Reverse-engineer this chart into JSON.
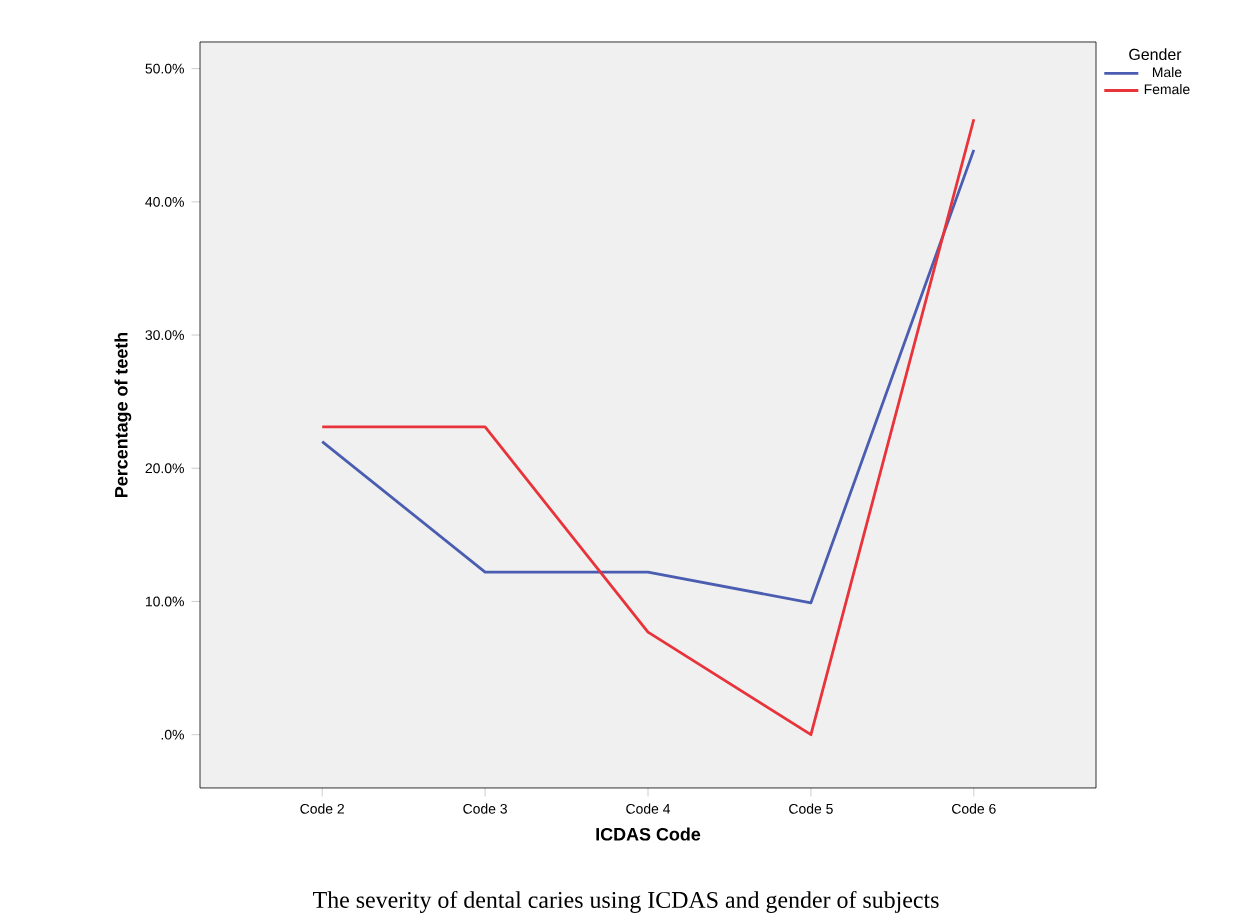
{
  "chart_data": {
    "type": "line",
    "categories": [
      "Code 2",
      "Code 3",
      "Code 4",
      "Code 5",
      "Code 6"
    ],
    "series": [
      {
        "name": "Male",
        "color": "#4a5db0",
        "values": [
          22,
          12.2,
          12.2,
          9.9,
          43.9
        ]
      },
      {
        "name": "Female",
        "color": "#e8333a",
        "values": [
          23.1,
          23.1,
          7.7,
          0,
          46.2
        ]
      }
    ],
    "xlabel": "ICDAS Code",
    "ylabel": "Percentage of teeth",
    "legend_title": "Gender",
    "legend": "top right",
    "ylim": [
      -4,
      52
    ],
    "yticks": [
      {
        "value": 0,
        "label": ".0%"
      },
      {
        "value": 10,
        "label": "10.0%"
      },
      {
        "value": 20,
        "label": "20.0%"
      },
      {
        "value": 30,
        "label": "30.0%"
      },
      {
        "value": 40,
        "label": "40.0%"
      },
      {
        "value": 50,
        "label": "50.0%"
      }
    ],
    "marker": "none",
    "line_style": "solid",
    "grid": false,
    "annotations": [
      "The severity of dental caries using ICDAS and gender of subjects"
    ]
  }
}
